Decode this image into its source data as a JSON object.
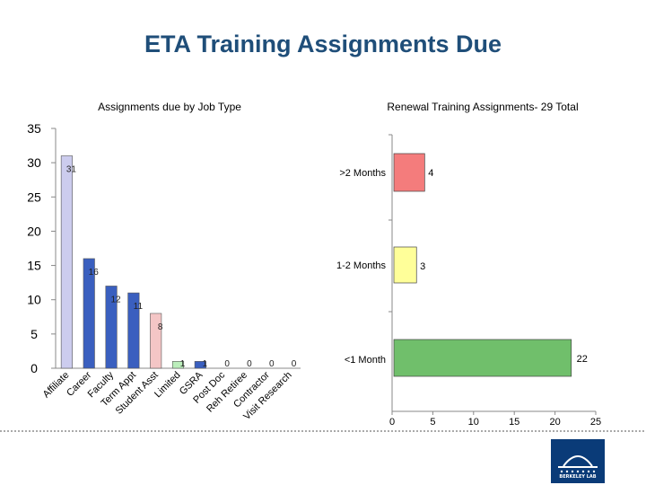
{
  "slide_title": "ETA Training Assignments Due",
  "logo": {
    "name": "berkeley-lab-logo",
    "text": "BERKELEY LAB"
  },
  "chart_data": [
    {
      "type": "bar",
      "title": "Assignments due by Job Type",
      "categories": [
        "Affiliate",
        "Career",
        "Faculty",
        "Term Appt",
        "Student Asst",
        "Limited",
        "GSRA",
        "Post Doc",
        "Reh Retiree",
        "Contractor",
        "Visit Research"
      ],
      "values": [
        31,
        16,
        12,
        11,
        8,
        1,
        1,
        0,
        0,
        0,
        0
      ],
      "data_labels": [
        "31",
        "16",
        "12",
        "11",
        "8",
        "1",
        "1",
        "0",
        "0",
        "0",
        "0"
      ],
      "colors": [
        "#ccccee",
        "#3a5fbf",
        "#3a5fbf",
        "#3a5fbf",
        "#f4c6c6",
        "#bbeebb",
        "#3a5fbf",
        "#3a5fbf",
        "#3a5fbf",
        "#3a5fbf",
        "#3a5fbf"
      ],
      "yticks": [
        0,
        5,
        10,
        15,
        20,
        25,
        30,
        35
      ],
      "ylim": [
        0,
        35
      ],
      "grid": false
    },
    {
      "type": "bar",
      "orientation": "horizontal",
      "title": "Renewal Training Assignments- 29 Total",
      "categories": [
        ">2 Months",
        "1-2 Months",
        "<1 Month"
      ],
      "values": [
        4,
        3,
        22
      ],
      "data_labels": [
        "4",
        "3",
        "22"
      ],
      "colors": [
        "#f47c7c",
        "#ffff99",
        "#70bf6b"
      ],
      "xticks": [
        0,
        5,
        10,
        15,
        20,
        25
      ],
      "xlim": [
        0,
        25
      ],
      "grid": false
    }
  ]
}
